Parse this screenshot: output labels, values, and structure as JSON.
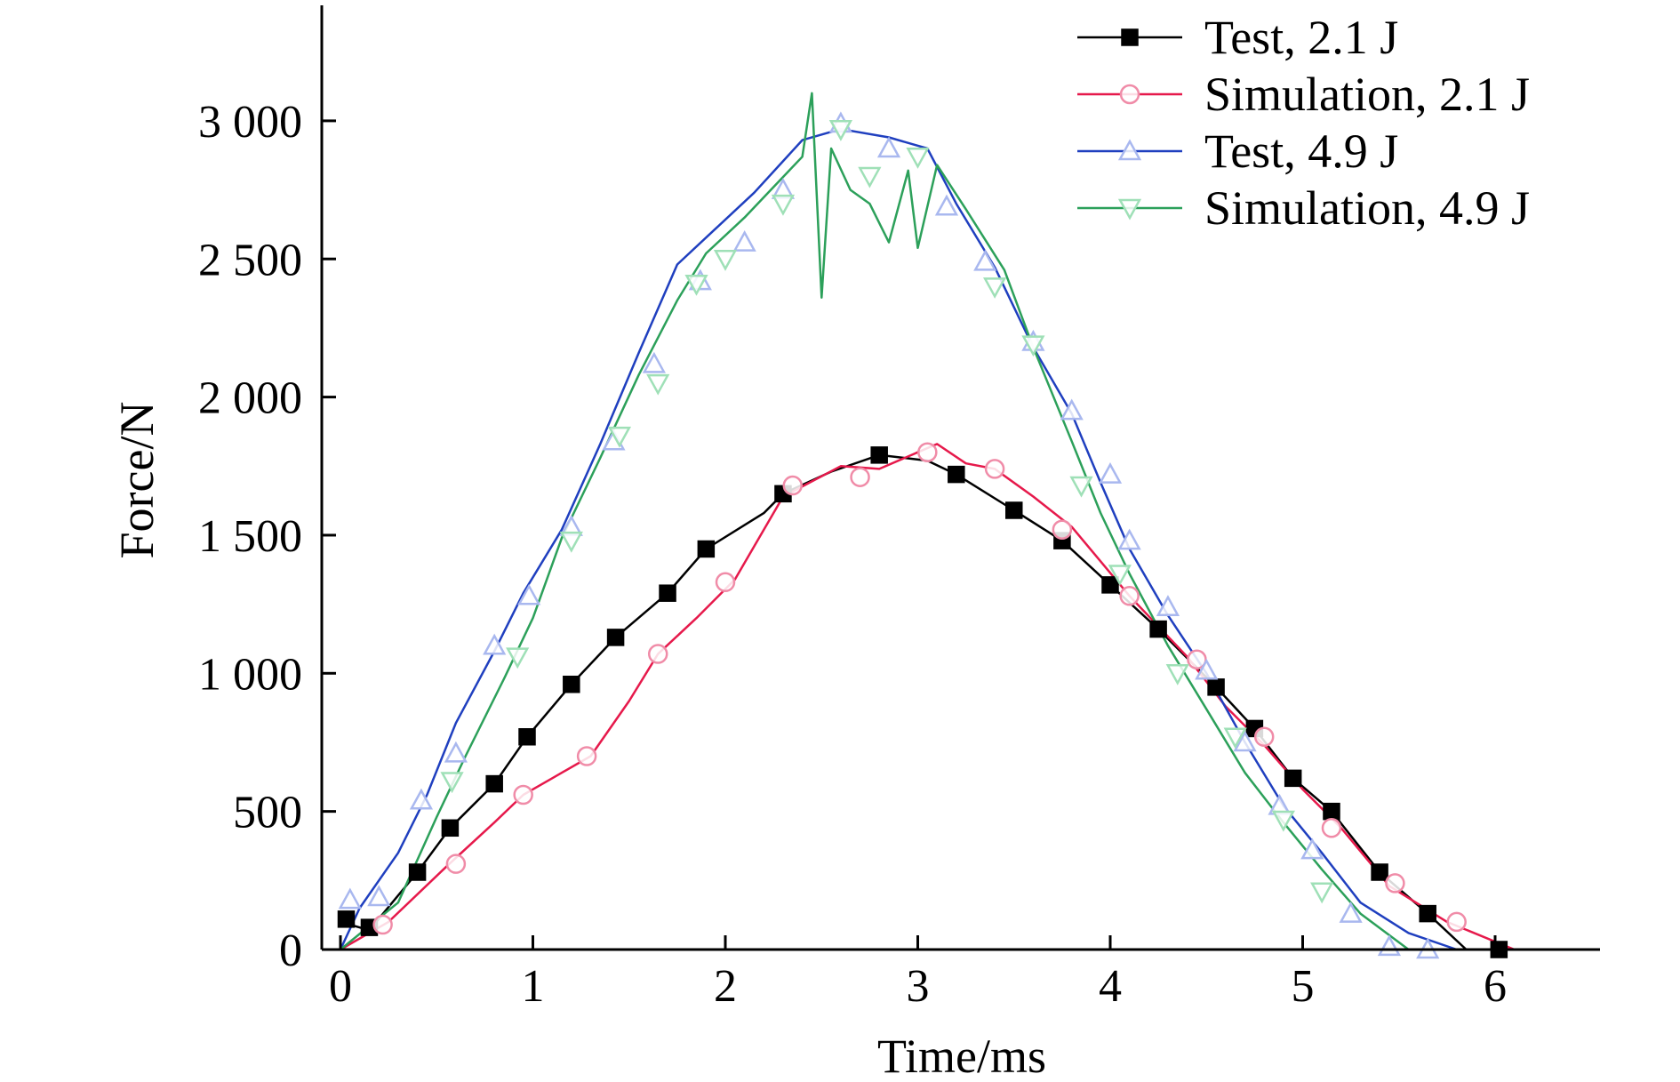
{
  "chart_data": {
    "type": "line",
    "title": "",
    "xlabel": "Time/ms",
    "ylabel": "Force/N",
    "xlim": [
      -0.1,
      6.5
    ],
    "ylim": [
      0,
      3400
    ],
    "x_ticks": [
      {
        "value": 0,
        "label": "0"
      },
      {
        "value": 1,
        "label": "1"
      },
      {
        "value": 2,
        "label": "2"
      },
      {
        "value": 3,
        "label": "3"
      },
      {
        "value": 4,
        "label": "4"
      },
      {
        "value": 5,
        "label": "5"
      },
      {
        "value": 6,
        "label": "6"
      }
    ],
    "y_ticks": [
      {
        "value": 0,
        "label": "0"
      },
      {
        "value": 500,
        "label": "500"
      },
      {
        "value": 1000,
        "label": "1 000"
      },
      {
        "value": 1500,
        "label": "1 500"
      },
      {
        "value": 2000,
        "label": "2 000"
      },
      {
        "value": 2500,
        "label": "2 500"
      },
      {
        "value": 3000,
        "label": "3 000"
      }
    ],
    "grid": false,
    "legend_position": "top-right",
    "series": [
      {
        "name": "Test, 2.1 J",
        "color": "#000000",
        "marker": "filled-square",
        "x": [
          0,
          0.15,
          0.4,
          0.57,
          0.8,
          0.97,
          1.2,
          1.43,
          1.7,
          1.9,
          2.2,
          2.3,
          2.55,
          2.8,
          3.05,
          3.2,
          3.5,
          3.75,
          4.0,
          4.25,
          4.55,
          4.75,
          4.95,
          5.15,
          5.4,
          5.65,
          5.85
        ],
        "y": [
          100,
          70,
          280,
          440,
          600,
          770,
          960,
          1130,
          1290,
          1450,
          1580,
          1650,
          1730,
          1790,
          1770,
          1720,
          1590,
          1480,
          1320,
          1160,
          950,
          800,
          620,
          500,
          280,
          130,
          0
        ],
        "marker_x": [
          0.03,
          0.15,
          0.4,
          0.57,
          0.8,
          0.97,
          1.2,
          1.43,
          1.7,
          1.9,
          2.3,
          2.8,
          3.2,
          3.5,
          3.75,
          4.0,
          4.25,
          4.55,
          4.75,
          4.95,
          5.15,
          5.4,
          5.65,
          6.02
        ],
        "marker_y": [
          110,
          80,
          280,
          440,
          600,
          770,
          960,
          1130,
          1290,
          1450,
          1650,
          1790,
          1720,
          1590,
          1480,
          1320,
          1160,
          950,
          800,
          620,
          500,
          280,
          130,
          0
        ]
      },
      {
        "name": "Simulation, 2.1 J",
        "color": "#e6194b",
        "marker": "open-circle",
        "x": [
          0,
          0.25,
          0.55,
          0.8,
          0.95,
          1.1,
          1.3,
          1.5,
          1.65,
          1.85,
          2.05,
          2.3,
          2.6,
          2.8,
          3.0,
          3.1,
          3.25,
          3.4,
          3.6,
          3.8,
          4.1,
          4.4,
          4.6,
          4.8,
          5.0,
          5.2,
          5.45,
          5.75,
          6.1
        ],
        "y": [
          0,
          100,
          300,
          460,
          560,
          620,
          700,
          900,
          1070,
          1200,
          1340,
          1640,
          1750,
          1740,
          1800,
          1830,
          1760,
          1740,
          1640,
          1530,
          1280,
          1060,
          880,
          740,
          580,
          440,
          230,
          100,
          0
        ],
        "marker_x": [
          0.22,
          0.6,
          0.95,
          1.28,
          1.65,
          2.0,
          2.35,
          2.7,
          3.05,
          3.4,
          3.75,
          4.1,
          4.45,
          4.8,
          5.15,
          5.48,
          5.8
        ],
        "marker_y": [
          90,
          310,
          560,
          700,
          1070,
          1330,
          1680,
          1710,
          1800,
          1740,
          1520,
          1280,
          1050,
          770,
          440,
          240,
          100
        ]
      },
      {
        "name": "Test, 4.9 J",
        "color": "#1f3fbf",
        "marker": "open-triangle-up",
        "x": [
          0,
          0.1,
          0.3,
          0.45,
          0.6,
          0.8,
          0.95,
          1.15,
          1.35,
          1.55,
          1.75,
          1.95,
          2.15,
          2.4,
          2.6,
          2.85,
          3.05,
          3.2,
          3.4,
          3.6,
          3.8,
          3.95,
          4.1,
          4.3,
          4.5,
          4.7,
          4.9,
          5.1,
          5.3,
          5.55,
          5.8
        ],
        "y": [
          0,
          150,
          350,
          560,
          820,
          1080,
          1290,
          1520,
          1830,
          2160,
          2480,
          2610,
          2740,
          2930,
          2970,
          2940,
          2900,
          2700,
          2470,
          2180,
          1940,
          1690,
          1450,
          1210,
          1000,
          750,
          520,
          350,
          170,
          60,
          0
        ],
        "marker_x": [
          0.05,
          0.2,
          0.42,
          0.6,
          0.8,
          0.98,
          1.2,
          1.42,
          1.63,
          1.87,
          2.1,
          2.3,
          2.6,
          2.85,
          3.15,
          3.35,
          3.6,
          3.8,
          4.0,
          4.1,
          4.3,
          4.5,
          4.7,
          4.88,
          5.05,
          5.25,
          5.45,
          5.65
        ],
        "marker_y": [
          180,
          190,
          540,
          710,
          1100,
          1280,
          1530,
          1840,
          2120,
          2420,
          2560,
          2750,
          2990,
          2900,
          2690,
          2490,
          2200,
          1950,
          1720,
          1480,
          1240,
          1010,
          750,
          520,
          360,
          130,
          10,
          0
        ]
      },
      {
        "name": "Simulation, 4.9 J",
        "color": "#2ca05a",
        "marker": "open-triangle-down",
        "x": [
          0,
          0.3,
          0.5,
          0.65,
          0.85,
          1.0,
          1.15,
          1.35,
          1.55,
          1.75,
          1.9,
          2.1,
          2.25,
          2.4,
          2.45,
          2.5,
          2.55,
          2.65,
          2.75,
          2.85,
          2.95,
          3.0,
          3.1,
          3.25,
          3.45,
          3.6,
          3.8,
          3.95,
          4.1,
          4.3,
          4.5,
          4.7,
          4.9,
          5.1,
          5.3,
          5.55
        ],
        "y": [
          0,
          170,
          480,
          700,
          980,
          1200,
          1490,
          1780,
          2080,
          2350,
          2520,
          2650,
          2760,
          2870,
          3100,
          2360,
          2900,
          2750,
          2700,
          2560,
          2820,
          2540,
          2840,
          2680,
          2460,
          2180,
          1840,
          1580,
          1360,
          1100,
          870,
          640,
          460,
          290,
          130,
          0
        ],
        "marker_x": [
          0.58,
          0.92,
          1.2,
          1.45,
          1.65,
          1.85,
          2.0,
          2.3,
          2.6,
          2.75,
          3.0,
          3.4,
          3.6,
          3.85,
          4.05,
          4.35,
          4.65,
          4.9,
          5.1
        ],
        "marker_y": [
          610,
          1060,
          1480,
          1860,
          2050,
          2410,
          2500,
          2700,
          2970,
          2800,
          2870,
          2400,
          2190,
          1680,
          1360,
          1000,
          770,
          470,
          210
        ]
      }
    ]
  }
}
